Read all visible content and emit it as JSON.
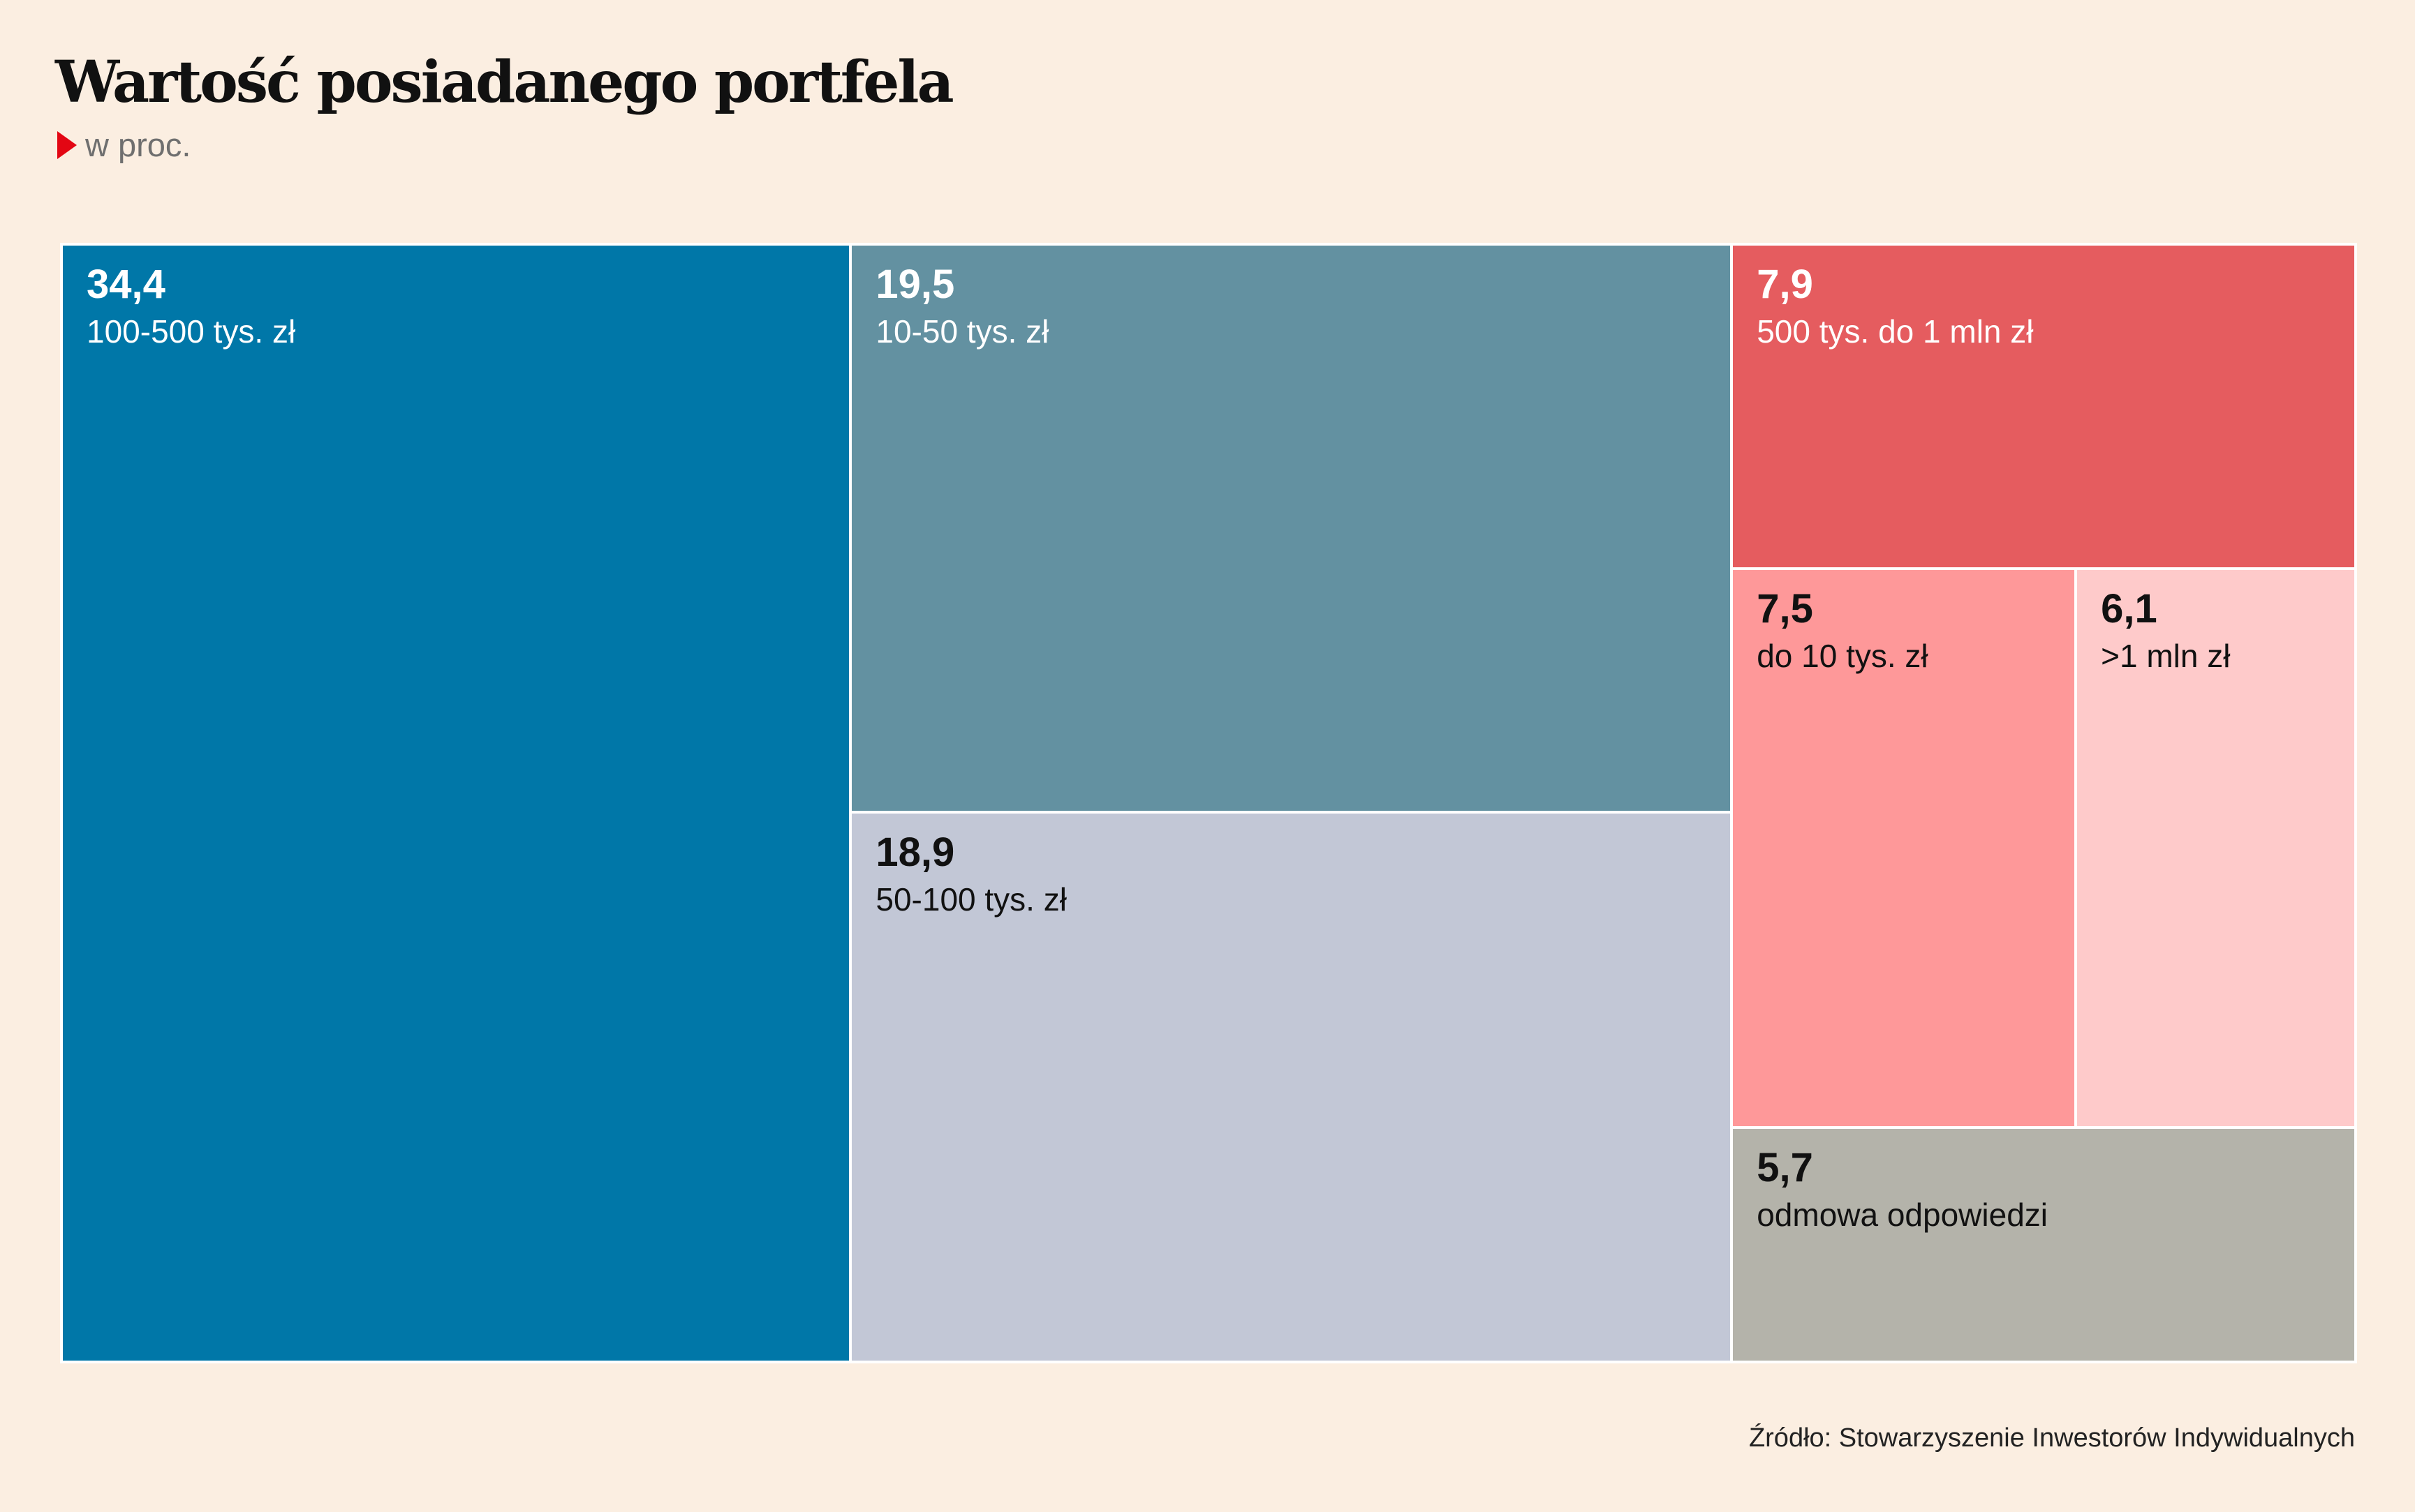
{
  "header": {
    "title": "Wartość posiadanego portfela",
    "subtitle": "w proc."
  },
  "footer": {
    "source": "Źródło: Stowarzyszenie Inwestorów Indywidualnych"
  },
  "colors": {
    "background": "#fbeee1",
    "accent_arrow": "#e30613"
  },
  "chart_data": {
    "type": "treemap",
    "unit": "%",
    "items": [
      {
        "label": "100-500 tys. zł",
        "value": 34.4,
        "display": "34,4",
        "color": "#0077a8",
        "text_color": "#ffffff"
      },
      {
        "label": "10-50 tys. zł",
        "value": 19.5,
        "display": "19,5",
        "color": "#6391a1",
        "text_color": "#ffffff"
      },
      {
        "label": "50-100 tys. zł",
        "value": 18.9,
        "display": "18,9",
        "color": "#c2c7d6",
        "text_color": "#111111"
      },
      {
        "label": "500 tys. do 1 mln zł",
        "value": 7.9,
        "display": "7,9",
        "color": "#e55c5f",
        "text_color": "#ffffff"
      },
      {
        "label": "do 10 tys. zł",
        "value": 7.5,
        "display": "7,5",
        "color": "#fe9899",
        "text_color": "#111111"
      },
      {
        "label": ">1 mln zł",
        "value": 6.1,
        "display": "6,1",
        "color": "#fecaca",
        "text_color": "#111111"
      },
      {
        "label": "odmowa odpowiedzi",
        "value": 5.7,
        "display": "5,7",
        "color": "#b4b3aa",
        "text_color": "#111111"
      }
    ]
  }
}
